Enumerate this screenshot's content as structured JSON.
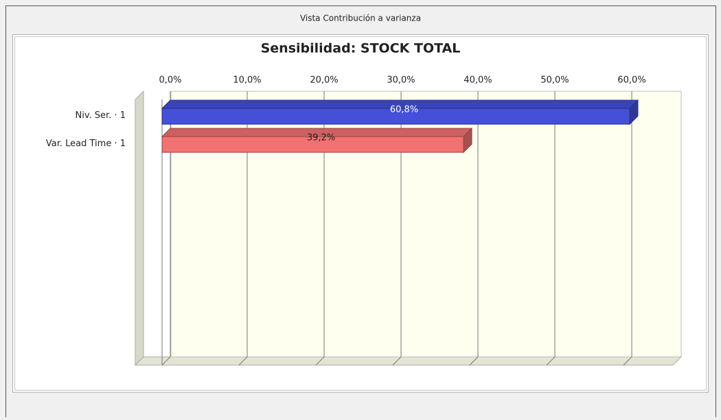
{
  "window": {
    "title": "Vista Contribución a varianza"
  },
  "chart_data": {
    "type": "bar",
    "orientation": "horizontal",
    "title": "Sensibilidad: STOCK TOTAL",
    "categories": [
      "Niv. Ser. · 1",
      "Var. Lead Time · 1"
    ],
    "values": [
      60.8,
      39.2
    ],
    "value_labels": [
      "60,8%",
      "39,2%"
    ],
    "colors": [
      "#4450d8",
      "#f27171"
    ],
    "xlim": [
      0,
      66.3
    ],
    "xticks": [
      {
        "value": 0,
        "label": "0,0%"
      },
      {
        "value": 10,
        "label": "10,0%"
      },
      {
        "value": 20,
        "label": "20,0%"
      },
      {
        "value": 30,
        "label": "30,0%"
      },
      {
        "value": 40,
        "label": "40,0%"
      },
      {
        "value": 50,
        "label": "50,0%"
      },
      {
        "value": 60,
        "label": "60,0%"
      }
    ],
    "grid": true
  }
}
